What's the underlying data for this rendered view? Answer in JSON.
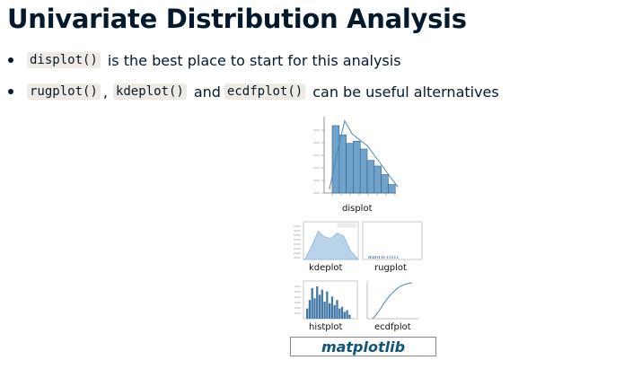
{
  "slide": {
    "title": "Univariate Distribution Analysis",
    "bullets": [
      {
        "code": "displot()",
        "text": "is the best place to start for this analysis"
      },
      {
        "code_a": "rugplot()",
        "sep": ",",
        "code_b": "kdeplot()",
        "and": "and",
        "code_c": "ecdfplot()",
        "text": "can be useful alternatives"
      }
    ]
  },
  "figures": {
    "displot_caption": "displot",
    "kdeplot_caption": "kdeplot",
    "rugplot_caption": "rugplot",
    "histplot_caption": "histplot",
    "ecdfplot_caption": "ecdfplot",
    "logo_text": "matplotlib",
    "colors": {
      "bar": "#6fa3cc",
      "bar_dark": "#3f77a6",
      "kde_fill": "#b8d3ea",
      "line": "#4f86b8"
    }
  },
  "chart_data": [
    {
      "type": "bar",
      "caption": "displot",
      "values": [
        0.95,
        0.82,
        0.7,
        0.73,
        0.62,
        0.46,
        0.38,
        0.26,
        0.12
      ],
      "kde": [
        0.05,
        0.55,
        0.98,
        0.8,
        0.72,
        0.64,
        0.5,
        0.36,
        0.22,
        0.08
      ]
    },
    {
      "type": "area",
      "caption": "kdeplot",
      "values": [
        0.02,
        0.35,
        0.75,
        0.6,
        0.55,
        0.7,
        0.62,
        0.25,
        0.05
      ]
    },
    {
      "type": "scatter",
      "caption": "rugplot",
      "values": [
        0.05,
        0.08,
        0.12,
        0.15,
        0.18,
        0.22,
        0.25,
        0.3,
        0.34,
        0.4,
        0.45,
        0.5,
        0.55,
        0.6
      ]
    },
    {
      "type": "bar",
      "caption": "histplot",
      "values": [
        0.3,
        0.55,
        0.9,
        0.6,
        0.95,
        0.7,
        0.85,
        0.5,
        0.8,
        0.45,
        0.65,
        0.4,
        0.55,
        0.3,
        0.35,
        0.2,
        0.25,
        0.12
      ]
    },
    {
      "type": "line",
      "caption": "ecdfplot",
      "values": [
        0.0,
        0.12,
        0.28,
        0.45,
        0.6,
        0.72,
        0.82,
        0.9,
        0.95,
        0.98,
        1.0
      ]
    }
  ]
}
